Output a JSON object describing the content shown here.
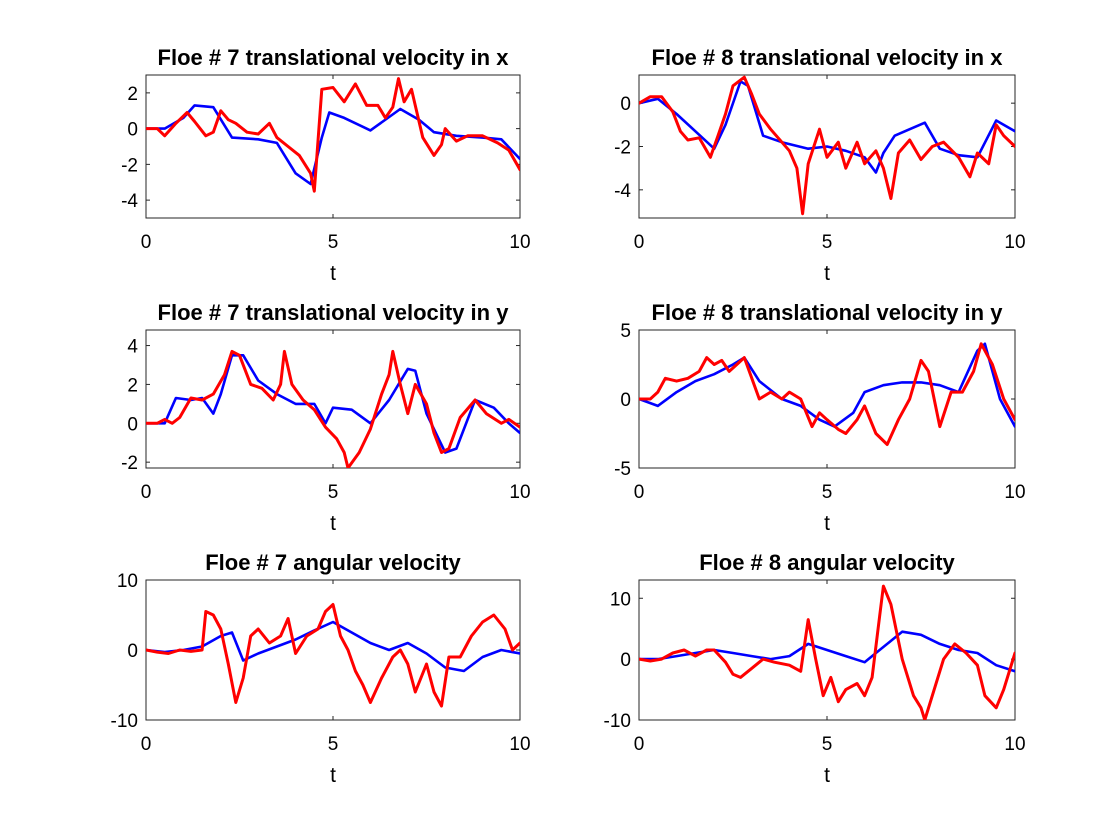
{
  "colors": {
    "blue": "#0000ff",
    "red": "#ff0000"
  },
  "chart_data": [
    {
      "type": "line",
      "title": "Floe # 7 translational velocity in x",
      "xlabel": "t",
      "xlim": [
        0,
        10
      ],
      "ylim": [
        -5,
        3
      ],
      "xticks": [
        "0",
        "5",
        "10"
      ],
      "yticks": [
        {
          "v": 2,
          "label": "2"
        },
        {
          "v": 0,
          "label": "0"
        },
        {
          "v": -2,
          "label": "-2"
        },
        {
          "v": -4,
          "label": "-4"
        }
      ],
      "series": [
        {
          "color": "blue",
          "x": [
            0,
            0.5,
            1,
            1.3,
            1.8,
            2.3,
            3,
            3.5,
            4,
            4.4,
            4.7,
            4.9,
            5.3,
            6,
            6.8,
            7.3,
            7.7,
            8.3,
            9,
            9.5,
            10
          ],
          "y": [
            0,
            0,
            0.6,
            1.3,
            1.2,
            -0.5,
            -0.6,
            -0.8,
            -2.5,
            -3.1,
            -0.5,
            0.9,
            0.6,
            -0.1,
            1.1,
            0.5,
            -0.2,
            -0.4,
            -0.5,
            -0.6,
            -1.7
          ]
        },
        {
          "color": "red",
          "x": [
            0,
            0.3,
            0.5,
            0.8,
            1.1,
            1.3,
            1.6,
            1.8,
            2,
            2.2,
            2.4,
            2.7,
            3,
            3.3,
            3.5,
            3.8,
            4.1,
            4.4,
            4.5,
            4.7,
            5,
            5.3,
            5.6,
            5.9,
            6.2,
            6.4,
            6.6,
            6.75,
            6.9,
            7.1,
            7.4,
            7.7,
            7.9,
            8,
            8.3,
            8.6,
            9,
            9.4,
            9.7,
            10
          ],
          "y": [
            0,
            0,
            -0.4,
            0.3,
            0.9,
            0.4,
            -0.4,
            -0.2,
            1,
            0.5,
            0.3,
            -0.2,
            -0.3,
            0.3,
            -0.5,
            -1,
            -1.5,
            -2.5,
            -3.5,
            2.2,
            2.3,
            1.5,
            2.5,
            1.3,
            1.3,
            0.6,
            1.2,
            2.8,
            1.5,
            2.2,
            -0.5,
            -1.5,
            -0.9,
            0,
            -0.7,
            -0.4,
            -0.4,
            -0.8,
            -1.2,
            -2.3
          ]
        }
      ]
    },
    {
      "type": "line",
      "title": "Floe # 8 translational velocity in x",
      "xlabel": "t",
      "xlim": [
        0,
        10
      ],
      "ylim": [
        -5.3,
        1.3
      ],
      "xticks": [
        "0",
        "5",
        "10"
      ],
      "yticks": [
        {
          "v": 0,
          "label": "0"
        },
        {
          "v": -2,
          "label": "-2"
        },
        {
          "v": -4,
          "label": "-4"
        }
      ],
      "series": [
        {
          "color": "blue",
          "x": [
            0,
            0.5,
            1,
            1.5,
            2,
            2.3,
            2.7,
            2.9,
            3.3,
            3.8,
            4.5,
            5,
            5.5,
            6,
            6.3,
            6.5,
            6.8,
            7.2,
            7.6,
            8,
            8.5,
            9,
            9.5,
            10
          ],
          "y": [
            0,
            0.2,
            -0.5,
            -1.3,
            -2.1,
            -1,
            1,
            0.8,
            -1.5,
            -1.8,
            -2.1,
            -2,
            -2.2,
            -2.5,
            -3.2,
            -2.3,
            -1.5,
            -1.2,
            -0.9,
            -2.1,
            -2.4,
            -2.5,
            -0.8,
            -1.3
          ]
        },
        {
          "color": "red",
          "x": [
            0,
            0.3,
            0.6,
            0.9,
            1.1,
            1.3,
            1.6,
            1.9,
            2.1,
            2.3,
            2.5,
            2.8,
            3,
            3.2,
            3.5,
            3.8,
            4,
            4.2,
            4.35,
            4.5,
            4.8,
            5,
            5.3,
            5.5,
            5.8,
            6,
            6.3,
            6.5,
            6.7,
            6.9,
            7.2,
            7.5,
            7.8,
            8.1,
            8.5,
            8.8,
            9,
            9.3,
            9.5,
            9.7,
            10
          ],
          "y": [
            0,
            0.3,
            0.3,
            -0.4,
            -1.3,
            -1.7,
            -1.6,
            -2.5,
            -1.5,
            -0.5,
            0.8,
            1.2,
            0.4,
            -0.5,
            -1.2,
            -1.8,
            -2.2,
            -3,
            -5.1,
            -2.8,
            -1.2,
            -2.5,
            -1.8,
            -3,
            -1.8,
            -2.8,
            -2.2,
            -3,
            -4.4,
            -2.3,
            -1.7,
            -2.6,
            -2,
            -1.8,
            -2.5,
            -3.4,
            -2.3,
            -2.8,
            -1,
            -1.5,
            -2
          ]
        }
      ]
    },
    {
      "type": "line",
      "title": "Floe # 7 translational velocity in y",
      "xlabel": "t",
      "xlim": [
        0,
        10
      ],
      "ylim": [
        -2.3,
        4.8
      ],
      "xticks": [
        "0",
        "5",
        "10"
      ],
      "yticks": [
        {
          "v": 4,
          "label": "4"
        },
        {
          "v": 2,
          "label": "2"
        },
        {
          "v": 0,
          "label": "0"
        },
        {
          "v": -2,
          "label": "-2"
        }
      ],
      "series": [
        {
          "color": "blue",
          "x": [
            0,
            0.5,
            0.8,
            1.2,
            1.5,
            1.8,
            2,
            2.3,
            2.6,
            3,
            3.5,
            4,
            4.5,
            4.8,
            5,
            5.5,
            6,
            6.5,
            7,
            7.2,
            7.5,
            8,
            8.3,
            8.8,
            9.3,
            9.7,
            10
          ],
          "y": [
            0,
            0,
            1.3,
            1.2,
            1.3,
            0.5,
            1.5,
            3.5,
            3.5,
            2.2,
            1.5,
            1,
            1,
            0,
            0.8,
            0.7,
            0,
            1.2,
            2.8,
            2.7,
            0.5,
            -1.5,
            -1.3,
            1.2,
            0.8,
            0,
            -0.5
          ]
        },
        {
          "color": "red",
          "x": [
            0,
            0.3,
            0.5,
            0.7,
            0.9,
            1.2,
            1.5,
            1.8,
            2.1,
            2.3,
            2.5,
            2.8,
            3.1,
            3.4,
            3.6,
            3.7,
            3.9,
            4.2,
            4.5,
            4.8,
            5.1,
            5.3,
            5.4,
            5.7,
            6,
            6.3,
            6.5,
            6.6,
            6.8,
            7,
            7.2,
            7.5,
            7.7,
            7.9,
            8.1,
            8.4,
            8.8,
            9.1,
            9.5,
            9.7,
            10
          ],
          "y": [
            0,
            0,
            0.2,
            0,
            0.3,
            1.3,
            1.2,
            1.5,
            2.5,
            3.7,
            3.5,
            2,
            1.8,
            1.2,
            2,
            3.7,
            2,
            1.2,
            0.7,
            -0.2,
            -0.8,
            -1.5,
            -2.3,
            -1.5,
            -0.3,
            1.5,
            2.5,
            3.7,
            2,
            0.5,
            2,
            1,
            -0.5,
            -1.5,
            -1.3,
            0.3,
            1.2,
            0.5,
            0,
            0.2,
            -0.2
          ]
        }
      ]
    },
    {
      "type": "line",
      "title": "Floe # 8 translational velocity in y",
      "xlabel": "t",
      "xlim": [
        0,
        10
      ],
      "ylim": [
        -5,
        5
      ],
      "xticks": [
        "0",
        "5",
        "10"
      ],
      "yticks": [
        {
          "v": 5,
          "label": "5"
        },
        {
          "v": 0,
          "label": "0"
        },
        {
          "v": -5,
          "label": "-5"
        }
      ],
      "series": [
        {
          "color": "blue",
          "x": [
            0,
            0.5,
            1,
            1.5,
            2,
            2.5,
            2.8,
            3.2,
            3.8,
            4.3,
            4.8,
            5.2,
            5.7,
            6,
            6.5,
            7,
            7.5,
            8,
            8.5,
            9,
            9.2,
            9.6,
            10
          ],
          "y": [
            0,
            -0.5,
            0.5,
            1.3,
            1.8,
            2.5,
            3,
            1.3,
            0,
            -0.5,
            -1.5,
            -2,
            -1,
            0.5,
            1,
            1.2,
            1.2,
            1,
            0.5,
            3.5,
            4,
            0,
            -2
          ]
        },
        {
          "color": "red",
          "x": [
            0,
            0.3,
            0.5,
            0.7,
            1,
            1.3,
            1.6,
            1.8,
            2,
            2.2,
            2.4,
            2.6,
            2.8,
            3,
            3.2,
            3.5,
            3.8,
            4,
            4.3,
            4.6,
            4.8,
            5,
            5.3,
            5.5,
            5.8,
            6,
            6.3,
            6.6,
            6.9,
            7.2,
            7.5,
            7.7,
            8,
            8.3,
            8.6,
            8.9,
            9.1,
            9.4,
            9.7,
            10
          ],
          "y": [
            0,
            0,
            0.5,
            1.5,
            1.3,
            1.5,
            2,
            3,
            2.5,
            2.8,
            2,
            2.5,
            3,
            1.5,
            0,
            0.5,
            0,
            0.5,
            0,
            -2,
            -1,
            -1.5,
            -2.2,
            -2.5,
            -1.5,
            -0.5,
            -2.5,
            -3.3,
            -1.5,
            0,
            2.8,
            2,
            -2,
            0.5,
            0.5,
            2,
            4,
            2.5,
            0,
            -1.5
          ]
        }
      ]
    },
    {
      "type": "line",
      "title": "Floe # 7 angular velocity",
      "xlabel": "t",
      "xlim": [
        0,
        10
      ],
      "ylim": [
        -10,
        10
      ],
      "xticks": [
        "0",
        "5",
        "10"
      ],
      "yticks": [
        {
          "v": 10,
          "label": "10"
        },
        {
          "v": 0,
          "label": "0"
        },
        {
          "v": -10,
          "label": "-10"
        }
      ],
      "series": [
        {
          "color": "blue",
          "x": [
            0,
            0.5,
            1,
            1.5,
            2,
            2.3,
            2.6,
            3,
            3.5,
            4,
            4.5,
            5,
            5.5,
            6,
            6.5,
            7,
            7.5,
            8,
            8.5,
            9,
            9.5,
            10
          ],
          "y": [
            0,
            -0.3,
            0,
            0.5,
            2,
            2.5,
            -1.5,
            -0.5,
            0.5,
            1.5,
            2.8,
            4,
            2.5,
            1,
            0,
            1,
            -0.5,
            -2.5,
            -3,
            -1,
            0,
            -0.5
          ]
        },
        {
          "color": "red",
          "x": [
            0,
            0.3,
            0.6,
            0.9,
            1.2,
            1.5,
            1.6,
            1.8,
            2,
            2.2,
            2.4,
            2.6,
            2.8,
            3,
            3.3,
            3.6,
            3.8,
            4,
            4.3,
            4.6,
            4.8,
            5,
            5.2,
            5.4,
            5.6,
            5.8,
            6,
            6.3,
            6.6,
            6.8,
            7,
            7.2,
            7.5,
            7.7,
            7.9,
            8.1,
            8.4,
            8.7,
            9,
            9.3,
            9.6,
            9.8,
            10
          ],
          "y": [
            0,
            -0.3,
            -0.5,
            0,
            -0.2,
            0,
            5.5,
            5,
            3,
            -2,
            -7.5,
            -4,
            2,
            3,
            1,
            2,
            4.5,
            -0.5,
            2,
            3,
            5.5,
            6.5,
            2,
            0,
            -3,
            -5,
            -7.5,
            -4,
            -1,
            0,
            -2,
            -6,
            -2,
            -6,
            -8,
            -1,
            -1,
            2,
            4,
            5,
            3,
            0,
            1
          ]
        }
      ]
    },
    {
      "type": "line",
      "title": "Floe # 8 angular velocity",
      "xlabel": "t",
      "xlim": [
        0,
        10
      ],
      "ylim": [
        -10,
        13
      ],
      "xticks": [
        "0",
        "5",
        "10"
      ],
      "yticks": [
        {
          "v": 10,
          "label": "10"
        },
        {
          "v": 0,
          "label": "0"
        },
        {
          "v": -10,
          "label": "-10"
        }
      ],
      "series": [
        {
          "color": "blue",
          "x": [
            0,
            0.5,
            1,
            1.5,
            2,
            2.5,
            3,
            3.5,
            4,
            4.5,
            5,
            5.5,
            6,
            6.3,
            6.7,
            7,
            7.5,
            8,
            8.5,
            9,
            9.5,
            10
          ],
          "y": [
            0,
            0,
            0.5,
            1,
            1.5,
            1,
            0.5,
            0,
            0.5,
            2.5,
            1.5,
            0.5,
            -0.5,
            1,
            3,
            4.5,
            4,
            2.5,
            1.5,
            1,
            -1,
            -2
          ]
        },
        {
          "color": "red",
          "x": [
            0,
            0.3,
            0.6,
            0.9,
            1.2,
            1.5,
            1.8,
            2,
            2.3,
            2.5,
            2.7,
            3,
            3.3,
            3.6,
            4,
            4.3,
            4.5,
            4.7,
            4.9,
            5.1,
            5.3,
            5.5,
            5.8,
            6,
            6.2,
            6.4,
            6.5,
            6.7,
            7,
            7.3,
            7.5,
            7.6,
            7.8,
            8.1,
            8.4,
            8.7,
            9,
            9.2,
            9.5,
            9.7,
            10
          ],
          "y": [
            0,
            -0.3,
            0,
            1,
            1.5,
            0.5,
            1.5,
            1.5,
            -0.5,
            -2.5,
            -3,
            -1.5,
            0,
            -0.5,
            -1,
            -2,
            6.5,
            0,
            -6,
            -3,
            -7,
            -5,
            -4,
            -6,
            -3,
            7,
            12,
            9,
            0,
            -6,
            -8,
            -10,
            -6,
            0,
            2.5,
            1,
            -1,
            -6,
            -8,
            -5,
            1
          ]
        }
      ]
    }
  ]
}
